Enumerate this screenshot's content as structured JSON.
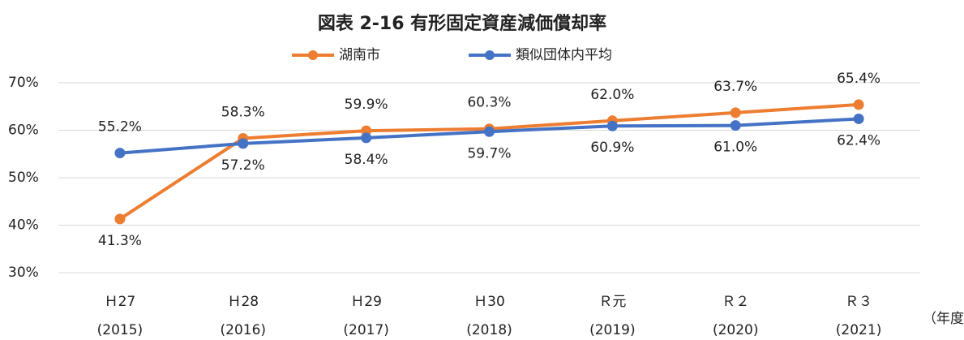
{
  "chart_data": {
    "type": "line",
    "title": "図表 2-16 有形固定資産減価償却率",
    "categories": [
      [
        "Ｈ27",
        "(2015)"
      ],
      [
        "Ｈ28",
        "(2016)"
      ],
      [
        "Ｈ29",
        "(2017)"
      ],
      [
        "Ｈ30",
        "(2018)"
      ],
      [
        "Ｒ元",
        "(2019)"
      ],
      [
        "Ｒ２",
        "(2020)"
      ],
      [
        "Ｒ３",
        "(2021)"
      ]
    ],
    "x_label": "（年度）",
    "series": [
      {
        "name": "湖南市",
        "color": "#ED7D31",
        "values": [
          41.3,
          58.3,
          59.9,
          60.3,
          62.0,
          63.7,
          65.4
        ],
        "value_labels": [
          "41.3%",
          "58.3%",
          "59.9%",
          "60.3%",
          "62.0%",
          "63.7%",
          "65.4%"
        ]
      },
      {
        "name": "類似団体内平均",
        "color": "#4472C4",
        "values": [
          55.2,
          57.2,
          58.4,
          59.7,
          60.9,
          61.0,
          62.4
        ],
        "value_labels": [
          "55.2%",
          "57.2%",
          "58.4%",
          "59.7%",
          "60.9%",
          "61.0%",
          "62.4%"
        ]
      }
    ],
    "ylim": [
      30,
      70
    ],
    "yticks": [
      {
        "value": 30,
        "label": "30%"
      },
      {
        "value": 40,
        "label": "40%"
      },
      {
        "value": 50,
        "label": "50%"
      },
      {
        "value": 60,
        "label": "60%"
      },
      {
        "value": 70,
        "label": "70%"
      }
    ],
    "grid": true,
    "legend": "top"
  }
}
